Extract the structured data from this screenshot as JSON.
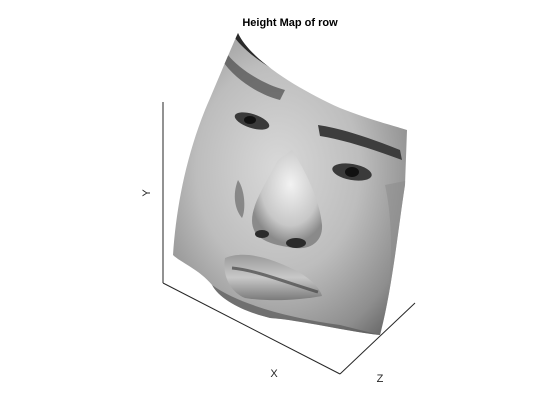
{
  "figure": {
    "title": "Height Map of row",
    "x_label": "X",
    "y_label": "Y",
    "z_label": "Z"
  },
  "colors": {
    "background": "#ffffff",
    "axis_line": "#262626",
    "surface_colormap": "gray"
  },
  "plot": {
    "type": "3d surface (height map rendered with grayscale face texture)",
    "grid": false,
    "ticks": false
  }
}
